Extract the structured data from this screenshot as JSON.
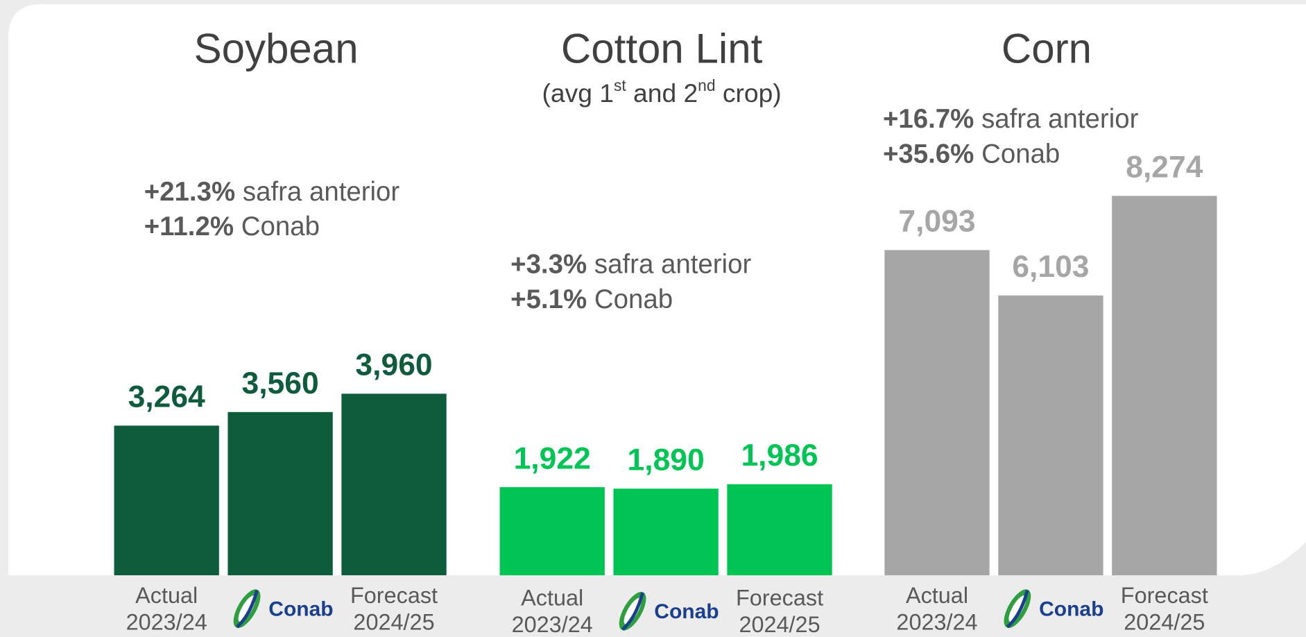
{
  "chart_data": [
    {
      "type": "bar",
      "title": "Soybean",
      "annotations": [
        {
          "value": "+21.3%",
          "text": "safra anterior"
        },
        {
          "value": "+11.2%",
          "text": "Conab"
        }
      ],
      "categories": [
        [
          "Actual",
          "2023/24"
        ],
        [
          "Conab"
        ],
        [
          "Forecast",
          "2024/25"
        ]
      ],
      "values": [
        3264,
        3560,
        3960
      ],
      "value_labels": [
        "3,264",
        "3,560",
        "3,960"
      ],
      "color": "#0f5c3c",
      "ylim": [
        0,
        10000
      ]
    },
    {
      "type": "bar",
      "title": "Cotton Lint",
      "subtitle_parts": [
        "(avg 1",
        "st",
        " and 2",
        "nd",
        " crop)"
      ],
      "annotations": [
        {
          "value": "+3.3%",
          "text": "safra anterior"
        },
        {
          "value": "+5.1%",
          "text": "Conab"
        }
      ],
      "categories": [
        [
          "Actual",
          "2023/24"
        ],
        [
          "Conab"
        ],
        [
          "Forecast",
          "2024/25"
        ]
      ],
      "values": [
        1922,
        1890,
        1986
      ],
      "value_labels": [
        "1,922",
        "1,890",
        "1,986"
      ],
      "color": "#00c454",
      "ylim": [
        0,
        10000
      ]
    },
    {
      "type": "bar",
      "title": "Corn",
      "annotations": [
        {
          "value": "+16.7%",
          "text": "safra anterior"
        },
        {
          "value": "+35.6%",
          "text": "Conab"
        }
      ],
      "categories": [
        [
          "Actual",
          "2023/24"
        ],
        [
          "Conab"
        ],
        [
          "Forecast",
          "2024/25"
        ]
      ],
      "values": [
        7093,
        6103,
        8274
      ],
      "value_labels": [
        "7,093",
        "6,103",
        "8,274"
      ],
      "color": "#a6a6a6",
      "ylim": [
        0,
        10000
      ]
    }
  ]
}
